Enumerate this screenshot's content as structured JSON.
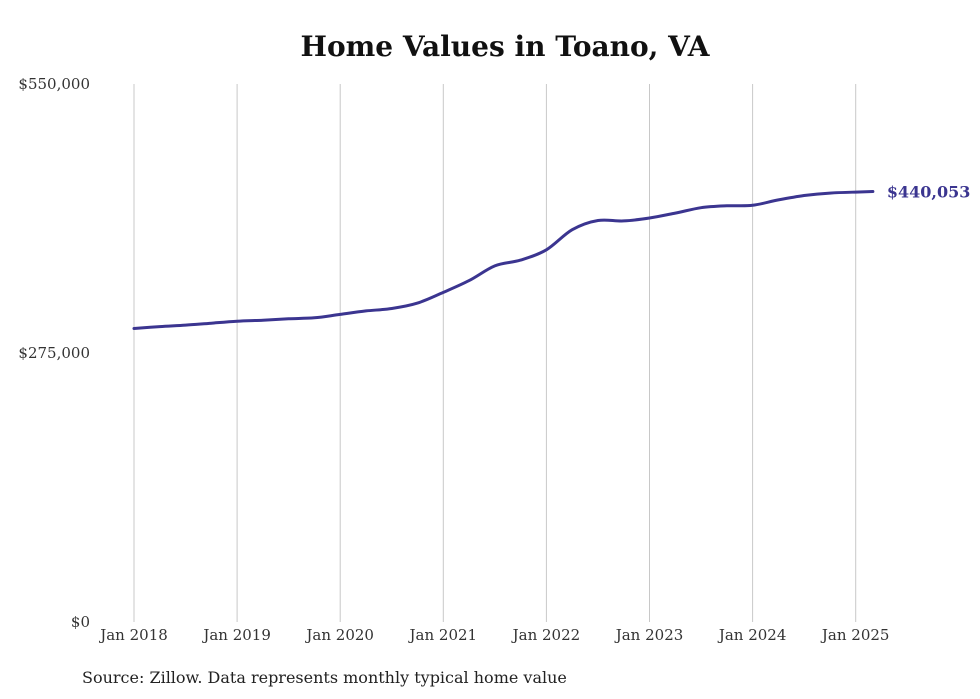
{
  "chart_data": {
    "type": "line",
    "title": "Home Values in Toano, VA",
    "xlabel": "",
    "ylabel": "",
    "x_tick_labels": [
      "Jan 2018",
      "Jan 2019",
      "Jan 2020",
      "Jan 2021",
      "Jan 2022",
      "Jan 2023",
      "Jan 2024",
      "Jan 2025"
    ],
    "y_tick_labels": [
      "$550,000",
      "$275,000",
      "$0"
    ],
    "y_tick_values": [
      550000,
      275000,
      0
    ],
    "xlim": [
      "2018-01",
      "2025-03"
    ],
    "ylim": [
      0,
      550000
    ],
    "grid": "vertical",
    "line_color": "#3b3590",
    "series": [
      {
        "x": [
          "2018-01",
          "2018-04",
          "2018-07",
          "2018-10",
          "2019-01",
          "2019-04",
          "2019-07",
          "2019-10",
          "2020-01",
          "2020-04",
          "2020-07",
          "2020-10",
          "2021-01",
          "2021-04",
          "2021-07",
          "2021-10",
          "2022-01",
          "2022-04",
          "2022-07",
          "2022-10",
          "2023-01",
          "2023-04",
          "2023-07",
          "2023-10",
          "2024-01",
          "2024-04",
          "2024-07",
          "2024-10",
          "2025-01",
          "2025-03"
        ],
        "values": [
          300000,
          302000,
          303500,
          305500,
          307500,
          308500,
          310000,
          311000,
          314500,
          318000,
          320500,
          326000,
          337000,
          349000,
          364000,
          370000,
          380500,
          401000,
          410500,
          410000,
          413000,
          418000,
          423500,
          425500,
          426000,
          431500,
          436000,
          438500,
          439500,
          440053
        ]
      }
    ],
    "end_label": "$440,053"
  },
  "source_note": "Source: Zillow. Data represents monthly typical home value"
}
